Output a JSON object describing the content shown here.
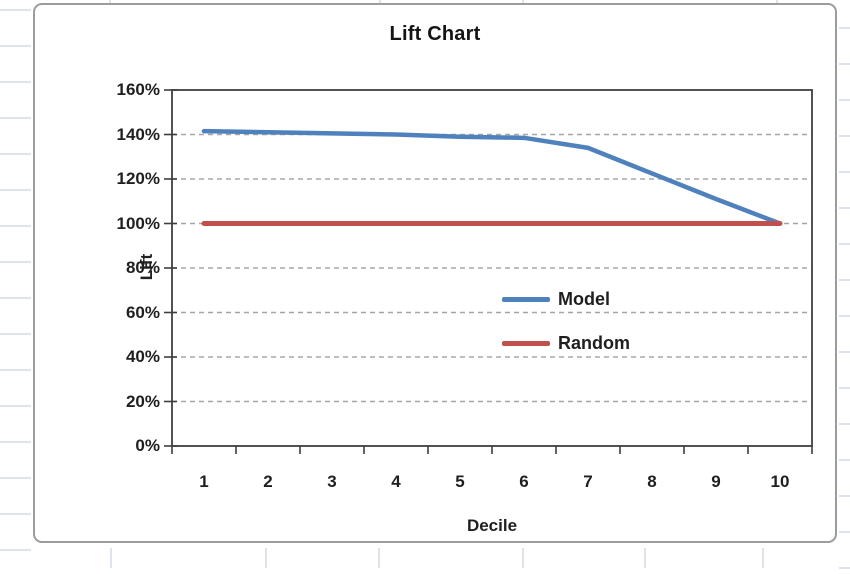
{
  "sheet": {
    "gridline_color": "#d4dce8"
  },
  "chart": {
    "background": "#ffffff",
    "border_color": "#9c9c9c",
    "axis_color": "#3f3f3f",
    "grid_color": "#a6a6a6",
    "text_color": "#1f1f1f"
  },
  "chart_data": {
    "type": "line",
    "title": "Lift Chart",
    "xlabel": "Decile",
    "ylabel": "Lift",
    "categories": [
      "1",
      "2",
      "3",
      "4",
      "5",
      "6",
      "7",
      "8",
      "9",
      "10"
    ],
    "series": [
      {
        "name": "Model",
        "color": "#4F81BD",
        "values": [
          141.5,
          141,
          140.5,
          140,
          139,
          138.5,
          134,
          122.5,
          111,
          100
        ]
      },
      {
        "name": "Random",
        "color": "#C0504D",
        "values": [
          100,
          100,
          100,
          100,
          100,
          100,
          100,
          100,
          100,
          100
        ]
      }
    ],
    "ylim": [
      0,
      160
    ],
    "y_tick_step": 20,
    "y_tick_labels": [
      "0%",
      "20%",
      "40%",
      "60%",
      "80%",
      "100%",
      "120%",
      "140%",
      "160%"
    ],
    "grid": "horizontal-dashed",
    "legend_position": "inside-right"
  }
}
